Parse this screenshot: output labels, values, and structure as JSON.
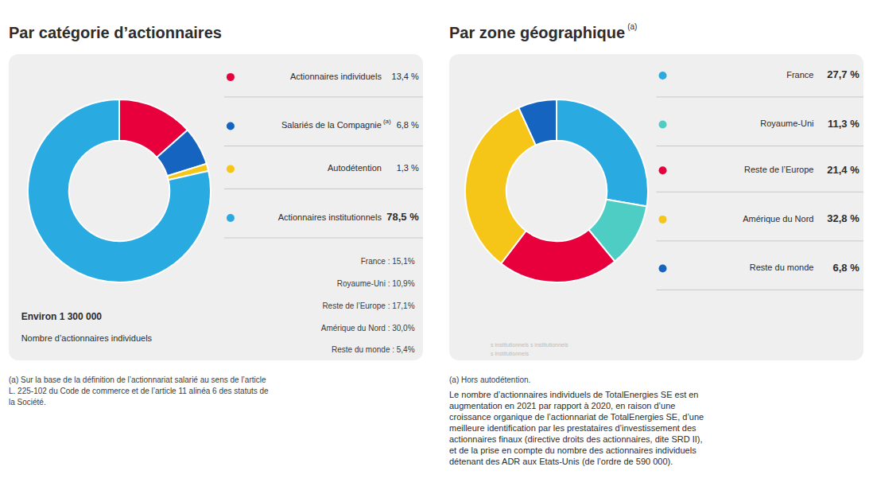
{
  "chart_data": [
    {
      "type": "pie",
      "title": "Par catégorie d’actionnaires",
      "categories": [
        "Actionnaires individuels",
        "Salariés de la Compagnie",
        "Autodétention",
        "Actionnaires institutionnels"
      ],
      "values": [
        13.4,
        6.8,
        1.3,
        78.5
      ],
      "value_labels": [
        "13,4 %",
        "6,8 %",
        "1,3 %",
        "78,5 %"
      ],
      "colors": [
        "#e8003d",
        "#1565c0",
        "#f5c518",
        "#29abe2"
      ],
      "data_labels": true,
      "annotations": [
        "(a)",
        "France : 15,1%",
        "Royaume-Uni : 10,9%",
        "Reste de l’Europe : 17,1%",
        "Amérique du Nord : 30,0%",
        "Reste du monde : 5,4%",
        "Environ 1 300 000",
        "Nombre d’actionnaires individuels",
        "(a) Sur la base de la définition de l’actionnariat salarié au sens de l’article",
        "L. 225-102 du Code de commerce et de l’article 11 alinéa 6 des statuts de",
        "la Société."
      ]
    },
    {
      "type": "pie",
      "title": "Par zone géographique",
      "categories": [
        "France",
        "Royaume-Uni",
        "Reste de l’Europe",
        "Amérique du Nord",
        "Reste du monde"
      ],
      "values": [
        27.7,
        11.3,
        21.4,
        32.8,
        6.8
      ],
      "value_labels": [
        "27,7 %",
        "11,3 %",
        "21,4 %",
        "32,8 %",
        "6,8 %"
      ],
      "colors": [
        "#29abe2",
        "#4ecdc4",
        "#e8003d",
        "#f5c518",
        "#1565c0"
      ],
      "data_labels": true,
      "annotations": [
        "(a)",
        "(a) Hors autodétention.",
        "Le nombre d’actionnaires individuels de TotalEnergies SE est en",
        "augmentation en 2021 par rapport à 2020, en raison d’une",
        "croissance organique de l’actionnariat de TotalEnergies SE, d’une",
        "meilleure identification par les prestataires d’investissement des",
        "actionnaires finaux (directive droits des actionnaires, dite SRD II),",
        "et de la prise en compte du nombre des actionnaires individuels",
        "détenant des ADR aux Etats-Unis (de l’ordre de 590 000).",
        "s institutionnels   s institutionnels",
        "s institutionnels"
      ]
    }
  ]
}
